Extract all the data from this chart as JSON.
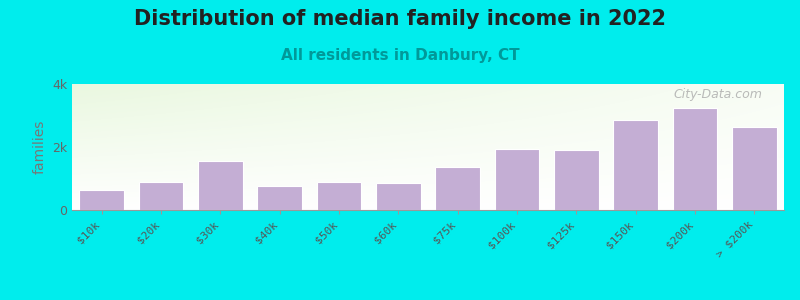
{
  "title": "Distribution of median family income in 2022",
  "subtitle": "All residents in Danbury, CT",
  "ylabel": "families",
  "categories": [
    "$10k",
    "$20k",
    "$30k",
    "$40k",
    "$50k",
    "$60k",
    "$75k",
    "$100k",
    "$125k",
    "$150k",
    "$200k",
    "> $200k"
  ],
  "values": [
    620,
    900,
    1550,
    750,
    900,
    850,
    1350,
    1950,
    1900,
    2850,
    3250,
    2650
  ],
  "bar_color": "#c4aed4",
  "bar_edge_color": "#ffffff",
  "background_color": "#00eded",
  "plot_bg_color": "#ffffff",
  "ylim": [
    0,
    4000
  ],
  "ytick_labels": [
    "0",
    "2k",
    "4k"
  ],
  "ytick_values": [
    0,
    2000,
    4000
  ],
  "title_fontsize": 15,
  "subtitle_fontsize": 11,
  "title_color": "#222222",
  "subtitle_color": "#009999",
  "ylabel_color": "#777777",
  "watermark": "City-Data.com",
  "watermark_color": "#aaaaaa"
}
